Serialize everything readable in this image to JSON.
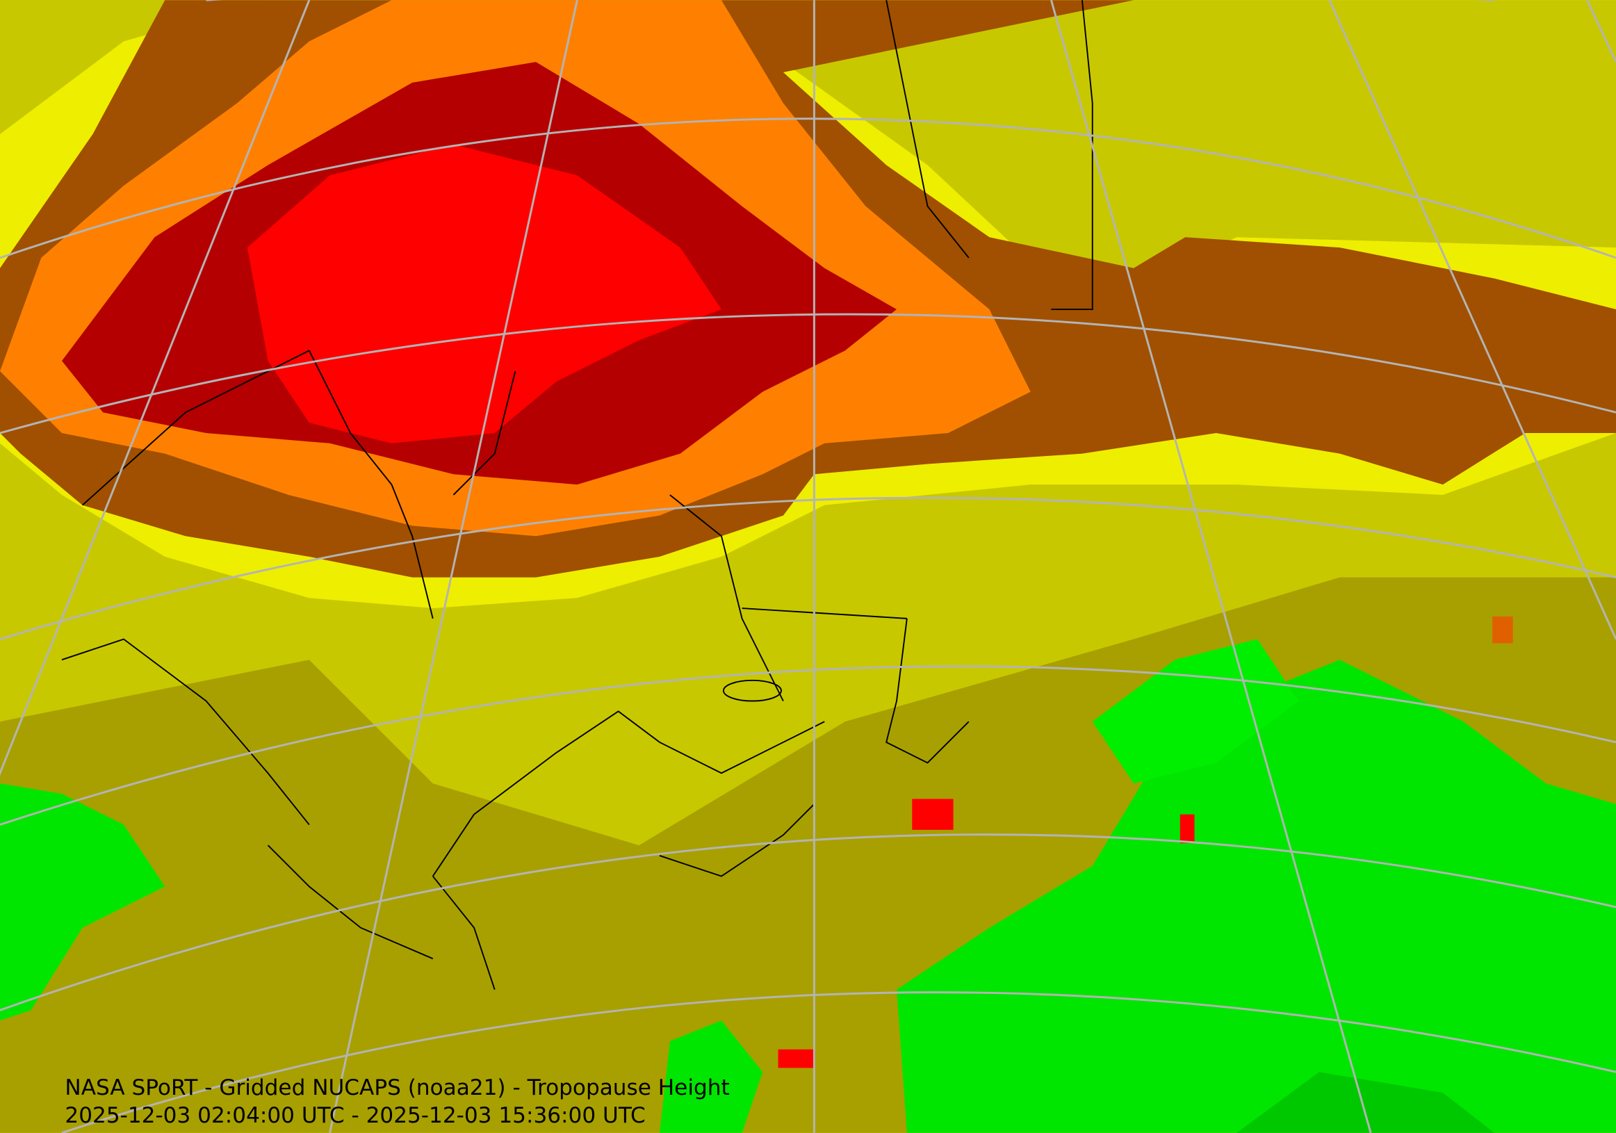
{
  "caption": {
    "line1": "NASA SPoRT - Gridded NUCAPS (noaa21) - Tropopause Height",
    "line2": "2025-12-03 02:04:00 UTC - 2025-12-03 15:36:00 UTC"
  }
}
